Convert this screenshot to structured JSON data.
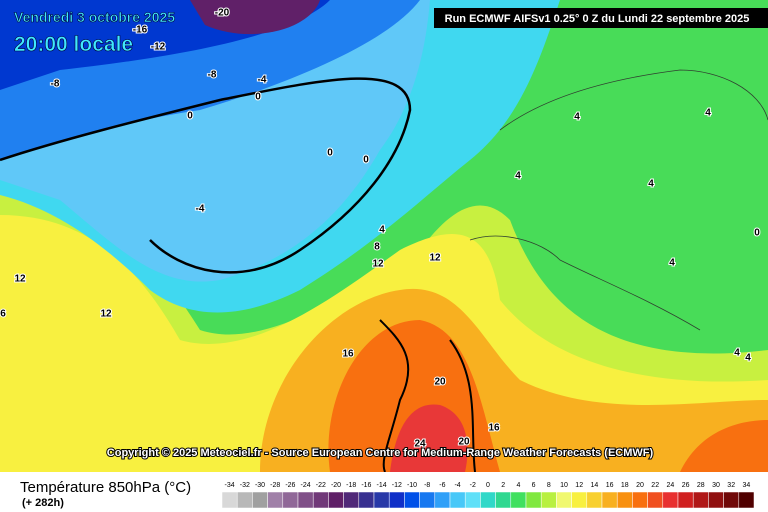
{
  "header": {
    "date": "Vendredi 3 octobre 2025",
    "time": "20:00 locale",
    "run": "Run ECMWF AIFSv1 0.25° 0 Z du Lundi 22 septembre 2025"
  },
  "map": {
    "contour_labels": [
      -20,
      -16,
      -12,
      -8,
      -8,
      -4,
      0,
      0,
      0,
      0,
      -4,
      4,
      8,
      12,
      12,
      12,
      12,
      6,
      16,
      20,
      24,
      20,
      16,
      4,
      4,
      4,
      4,
      4,
      4,
      4,
      0
    ],
    "copyright": "Copyright © 2025 Meteociel.fr - Source European Centre for Medium-Range Weather Forecasts (ECMWF)"
  },
  "legend": {
    "title": "Température 850hPa (°C)",
    "lead": "(+ 282h)",
    "values": [
      -34,
      -32,
      -30,
      -28,
      -26,
      -24,
      -22,
      -20,
      -18,
      -16,
      -14,
      -12,
      -10,
      -8,
      -6,
      -4,
      -2,
      0,
      2,
      4,
      6,
      8,
      10,
      12,
      14,
      16,
      18,
      20,
      22,
      24,
      26,
      28,
      30,
      32,
      34
    ],
    "colors": [
      "#d8d8d8",
      "#b8b8b8",
      "#a0a0a0",
      "#a080a8",
      "#906898",
      "#805088",
      "#703878",
      "#602068",
      "#502878",
      "#383090",
      "#2838a8",
      "#1030c8",
      "#0050e8",
      "#1878f0",
      "#30a0f8",
      "#48c8f8",
      "#60e0f8",
      "#30d8c8",
      "#30d890",
      "#40e060",
      "#80e840",
      "#b8f040",
      "#f0f870",
      "#f8f040",
      "#f8d030",
      "#f8b020",
      "#f89010",
      "#f87010",
      "#f05020",
      "#e83030",
      "#d02020",
      "#b01818",
      "#901010",
      "#700808",
      "#500000"
    ]
  }
}
